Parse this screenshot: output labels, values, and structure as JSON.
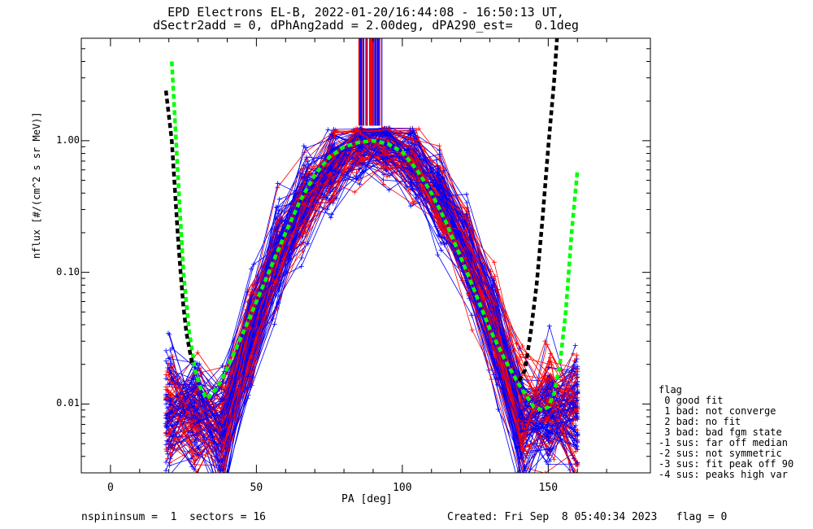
{
  "chart_data": {
    "type": "line",
    "title": "EPD Electrons EL-B, 2022-01-20/16:44:08 - 16:50:13 UT,",
    "subtitle": "dSectr2add = 0, dPhAng2add = 2.00deg, dPA290_est=   0.1deg",
    "xlabel": "PA [deg]",
    "ylabel": "nflux [#/(cm^2 s sr MeV)]",
    "xlim": [
      -10,
      185
    ],
    "ylim": [
      0.003,
      6.0
    ],
    "yscale": "log",
    "x_ticks": [
      "0",
      "50",
      "100",
      "150"
    ],
    "y_ticks": [
      "0.01",
      "0.10",
      "1.00"
    ],
    "series": [
      {
        "color": "#00ff00",
        "style": "dashed",
        "x": [
          21,
          23,
          25,
          27,
          29,
          31,
          33,
          35,
          38,
          41,
          45,
          50,
          55,
          60,
          65,
          70,
          75,
          80,
          85,
          90,
          95,
          100,
          105,
          110,
          115,
          120,
          125,
          130,
          135,
          140,
          145,
          148,
          150,
          152,
          154,
          156,
          158,
          160
        ],
        "y": [
          4.0,
          0.6,
          0.1,
          0.035,
          0.018,
          0.013,
          0.011,
          0.012,
          0.015,
          0.021,
          0.033,
          0.06,
          0.11,
          0.2,
          0.35,
          0.55,
          0.75,
          0.9,
          0.97,
          1.0,
          0.95,
          0.82,
          0.6,
          0.4,
          0.24,
          0.13,
          0.07,
          0.037,
          0.022,
          0.014,
          0.0095,
          0.009,
          0.0095,
          0.012,
          0.02,
          0.05,
          0.2,
          0.6
        ]
      },
      {
        "color": "#000000",
        "style": "dashed",
        "x": [
          19,
          21,
          22,
          23,
          24,
          25,
          26,
          28,
          140,
          142,
          143,
          144,
          146,
          148,
          150,
          152,
          153
        ],
        "y": [
          2.4,
          1.0,
          0.45,
          0.2,
          0.1,
          0.055,
          0.035,
          0.02,
          0.015,
          0.018,
          0.025,
          0.035,
          0.08,
          0.25,
          0.9,
          2.8,
          6.0
        ]
      }
    ],
    "overflow_spikes": {
      "x_range": [
        85,
        93
      ],
      "colors": [
        "#0000ff",
        "#ff0000"
      ]
    }
  },
  "legend": {
    "title": "flag",
    "items": [
      " 0 good fit",
      " 1 bad: not converge",
      " 2 bad: no fit",
      " 3 bad: bad fgm state",
      "-1 sus: far off median",
      "-2 sus: not symmetric",
      "-3 sus: fit peak off 90",
      "-4 sus: peaks high var"
    ]
  },
  "footer": {
    "left": "nspininsum =  1  sectors = 16",
    "right": "Created: Fri Sep  8 05:40:34 2023   flag = 0"
  },
  "colors": {
    "blue": "#0000ff",
    "red": "#ff0000",
    "green": "#00ff00",
    "black": "#000000"
  }
}
